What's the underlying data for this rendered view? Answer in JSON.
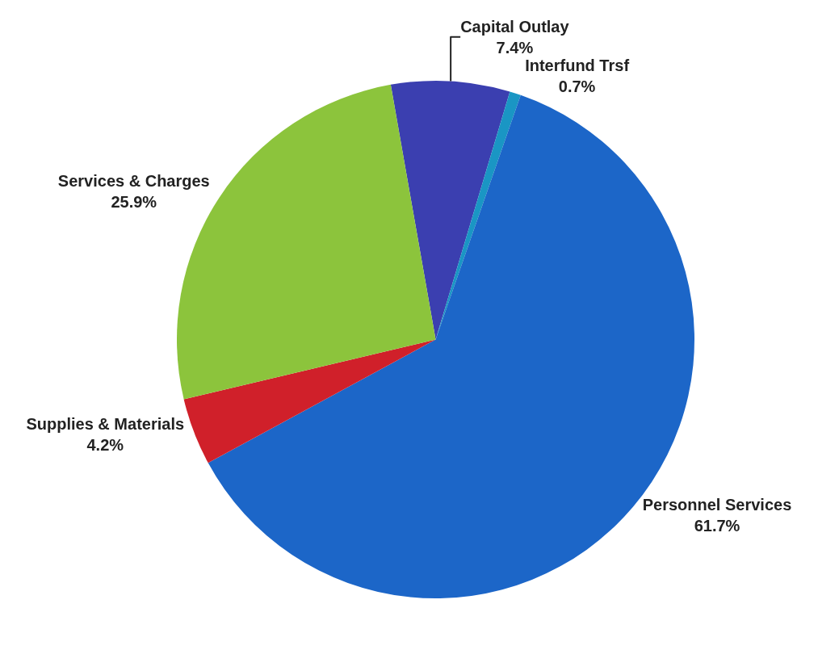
{
  "chart_data": {
    "type": "pie",
    "categories": [
      "Capital Outlay",
      "Interfund Trsf",
      "Personnel Services",
      "Supplies & Materials",
      "Services & Charges"
    ],
    "values": [
      7.4,
      0.7,
      61.7,
      4.2,
      25.9
    ],
    "value_labels": [
      "7.4%",
      "0.7%",
      "61.7%",
      "4.2%",
      "25.9%"
    ],
    "colors": [
      "#3b3fb0",
      "#1a96c4",
      "#1c66c8",
      "#d0202a",
      "#8cc43c"
    ],
    "legend": false
  }
}
